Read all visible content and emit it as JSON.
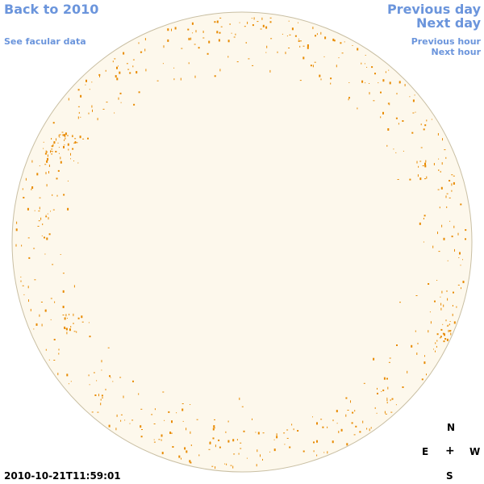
{
  "nav": {
    "back_label": "Back to 2010",
    "facular_label": "See facular data",
    "prev_day_label": "Previous day",
    "next_day_label": "Next day",
    "prev_hour_label": "Previous hour",
    "next_hour_label": "Next hour"
  },
  "compass": {
    "north": "N",
    "east": "E",
    "center": "+",
    "west": "W",
    "south": "S"
  },
  "timestamp": "2010-10-21T11:59:01",
  "colors": {
    "link": "#6b95dc",
    "disk_fill": "#fdf8ec",
    "disk_stroke": "#c9bfa3",
    "facula": "#e88a00"
  }
}
